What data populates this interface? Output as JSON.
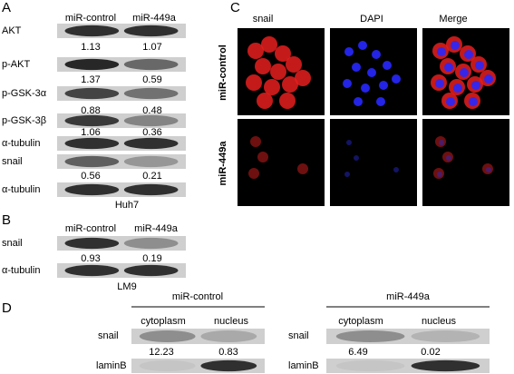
{
  "panel_a": {
    "label": "A",
    "headers": [
      "miR-control",
      "miR-449a"
    ],
    "rows": [
      {
        "label": "AKT",
        "values": [
          1.13,
          1.07
        ]
      },
      {
        "label": "p-AKT",
        "values": [
          1.37,
          0.59
        ]
      },
      {
        "label": "p-GSK-3α",
        "values": [
          0.88,
          0.48
        ]
      },
      {
        "label": "p-GSK-3β",
        "values": [
          1.06,
          0.36
        ]
      },
      {
        "label": "α-tubulin"
      },
      {
        "label": "snail",
        "values": [
          0.56,
          0.21
        ]
      },
      {
        "label": "α-tubulin"
      }
    ],
    "cell_line": "Huh7"
  },
  "panel_b": {
    "label": "B",
    "headers": [
      "miR-control",
      "miR-449a"
    ],
    "rows": [
      {
        "label": "snail",
        "values": [
          0.93,
          0.19
        ]
      },
      {
        "label": "α-tubulin"
      }
    ],
    "cell_line": "LM9"
  },
  "panel_c": {
    "label": "C",
    "columns": [
      "snail",
      "DAPI",
      "Merge"
    ],
    "rows": [
      "miR-control",
      "miR-449a"
    ]
  },
  "panel_d": {
    "label": "D",
    "groups": [
      {
        "title": "miR-control",
        "columns": [
          "cytoplasm",
          "nucleus"
        ],
        "rows": [
          {
            "label": "snail",
            "values": [
              12.23,
              0.83
            ]
          },
          {
            "label": "laminB"
          }
        ]
      },
      {
        "title": "miR-449a",
        "columns": [
          "cytoplasm",
          "nucleus"
        ],
        "rows": [
          {
            "label": "snail",
            "values": [
              6.49,
              0.02
            ]
          },
          {
            "label": "laminB"
          }
        ]
      }
    ]
  }
}
